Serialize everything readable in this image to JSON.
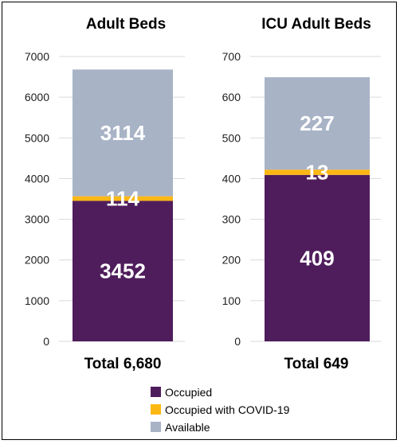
{
  "colors": {
    "occupied": "#4f1d5c",
    "covid": "#fbb714",
    "available": "#a8b3c6"
  },
  "chart_data": [
    {
      "type": "bar",
      "stacked": true,
      "title": "Adult Beds",
      "ylim": [
        0,
        7000
      ],
      "yticks": [
        0,
        1000,
        2000,
        3000,
        4000,
        5000,
        6000,
        7000
      ],
      "grid": true,
      "series": [
        {
          "name": "Occupied",
          "value": 3452,
          "label": "3452"
        },
        {
          "name": "Occupied with COVID-19",
          "value": 114,
          "label": "114"
        },
        {
          "name": "Available",
          "value": 3114,
          "label": "3114"
        }
      ],
      "total_label": "Total 6,680"
    },
    {
      "type": "bar",
      "stacked": true,
      "title": "ICU Adult Beds",
      "ylim": [
        0,
        700
      ],
      "yticks": [
        0,
        100,
        200,
        300,
        400,
        500,
        600,
        700
      ],
      "grid": true,
      "series": [
        {
          "name": "Occupied",
          "value": 409,
          "label": "409"
        },
        {
          "name": "Occupied with COVID-19",
          "value": 13,
          "label": "13"
        },
        {
          "name": "Available",
          "value": 227,
          "label": "227"
        }
      ],
      "total_label": "Total 649"
    }
  ],
  "legend": {
    "placement": "bottom",
    "items": [
      "Occupied",
      "Occupied with COVID-19",
      "Available"
    ]
  }
}
